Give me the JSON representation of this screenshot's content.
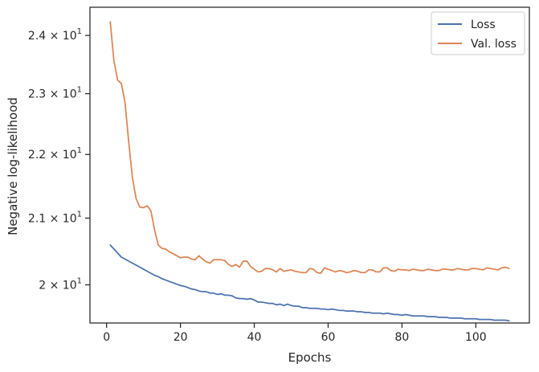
{
  "chart_data": {
    "type": "line",
    "xlabel": "Epochs",
    "ylabel": "Negative log-likelihood",
    "xlim": [
      -4.5,
      114.5
    ],
    "ylim": [
      19.45,
      24.5
    ],
    "yscale": "log",
    "x_ticks": [
      0,
      20,
      40,
      60,
      80,
      100
    ],
    "x_tick_labels": [
      "0",
      "20",
      "40",
      "60",
      "80",
      "100"
    ],
    "y_ticks": [
      20,
      21,
      22,
      23,
      24
    ],
    "y_tick_labels": [
      {
        "mantissa": "2",
        "exp": "1"
      },
      {
        "mantissa": "2.1",
        "exp": "1"
      },
      {
        "mantissa": "2.2",
        "exp": "1"
      },
      {
        "mantissa": "2.3",
        "exp": "1"
      },
      {
        "mantissa": "2.4",
        "exp": "1"
      }
    ],
    "y_tick_prefix_times": "×",
    "y_tick_base": "10",
    "grid": false,
    "legend_position": "top-right",
    "series": [
      {
        "name": "Loss",
        "color": "#4c72b0",
        "x": [
          1,
          2,
          3,
          4,
          5,
          6,
          7,
          8,
          9,
          10,
          11,
          12,
          13,
          14,
          15,
          16,
          17,
          18,
          19,
          20,
          21,
          22,
          23,
          24,
          25,
          26,
          27,
          28,
          29,
          30,
          31,
          32,
          33,
          34,
          35,
          36,
          37,
          38,
          39,
          40,
          41,
          42,
          43,
          44,
          45,
          46,
          47,
          48,
          49,
          50,
          51,
          52,
          53,
          54,
          55,
          56,
          57,
          58,
          59,
          60,
          61,
          62,
          63,
          64,
          65,
          66,
          67,
          68,
          69,
          70,
          71,
          72,
          73,
          74,
          75,
          76,
          77,
          78,
          79,
          80,
          81,
          82,
          83,
          84,
          85,
          86,
          87,
          88,
          89,
          90,
          91,
          92,
          93,
          94,
          95,
          96,
          97,
          98,
          99,
          100,
          101,
          102,
          103,
          104,
          105,
          106,
          107,
          108,
          109
        ],
        "values": [
          20.59,
          20.53,
          20.47,
          20.41,
          20.38,
          20.35,
          20.32,
          20.29,
          20.26,
          20.23,
          20.2,
          20.17,
          20.14,
          20.12,
          20.09,
          20.07,
          20.05,
          20.03,
          20.01,
          19.99,
          19.98,
          19.96,
          19.94,
          19.93,
          19.91,
          19.9,
          19.9,
          19.88,
          19.88,
          19.86,
          19.87,
          19.85,
          19.85,
          19.84,
          19.81,
          19.8,
          19.8,
          19.79,
          19.8,
          19.78,
          19.75,
          19.75,
          19.74,
          19.73,
          19.73,
          19.71,
          19.72,
          19.7,
          19.72,
          19.7,
          19.69,
          19.69,
          19.67,
          19.67,
          19.66,
          19.66,
          19.66,
          19.65,
          19.65,
          19.64,
          19.65,
          19.64,
          19.63,
          19.63,
          19.62,
          19.62,
          19.62,
          19.61,
          19.61,
          19.6,
          19.6,
          19.59,
          19.59,
          19.59,
          19.58,
          19.59,
          19.58,
          19.57,
          19.57,
          19.56,
          19.57,
          19.56,
          19.55,
          19.55,
          19.55,
          19.55,
          19.54,
          19.54,
          19.54,
          19.53,
          19.53,
          19.53,
          19.52,
          19.52,
          19.52,
          19.52,
          19.51,
          19.51,
          19.51,
          19.51,
          19.5,
          19.5,
          19.5,
          19.5,
          19.49,
          19.49,
          19.49,
          19.49,
          19.48
        ]
      },
      {
        "name": "Val. loss",
        "color": "#dd8452",
        "x": [
          1,
          2,
          3,
          4,
          5,
          6,
          7,
          8,
          9,
          10,
          11,
          12,
          13,
          14,
          15,
          16,
          17,
          18,
          19,
          20,
          21,
          22,
          23,
          24,
          25,
          26,
          27,
          28,
          29,
          30,
          31,
          32,
          33,
          34,
          35,
          36,
          37,
          38,
          39,
          40,
          41,
          42,
          43,
          44,
          45,
          46,
          47,
          48,
          49,
          50,
          51,
          52,
          53,
          54,
          55,
          56,
          57,
          58,
          59,
          60,
          61,
          62,
          63,
          64,
          65,
          66,
          67,
          68,
          69,
          70,
          71,
          72,
          73,
          74,
          75,
          76,
          77,
          78,
          79,
          80,
          81,
          82,
          83,
          84,
          85,
          86,
          87,
          88,
          89,
          90,
          91,
          92,
          93,
          94,
          95,
          96,
          97,
          98,
          99,
          100,
          101,
          102,
          103,
          104,
          105,
          106,
          107,
          108,
          109
        ],
        "values": [
          24.24,
          23.55,
          23.23,
          23.17,
          22.85,
          22.2,
          21.63,
          21.3,
          21.17,
          21.16,
          21.19,
          21.11,
          20.82,
          20.59,
          20.54,
          20.53,
          20.49,
          20.46,
          20.43,
          20.4,
          20.41,
          20.41,
          20.38,
          20.37,
          20.43,
          20.38,
          20.34,
          20.32,
          20.37,
          20.37,
          20.37,
          20.36,
          20.3,
          20.27,
          20.3,
          20.26,
          20.35,
          20.35,
          20.27,
          20.23,
          20.19,
          20.2,
          20.24,
          20.24,
          20.22,
          20.19,
          20.24,
          20.2,
          20.21,
          20.22,
          20.2,
          20.19,
          20.18,
          20.18,
          20.24,
          20.23,
          20.18,
          20.17,
          20.25,
          20.23,
          20.21,
          20.19,
          20.21,
          20.2,
          20.18,
          20.19,
          20.21,
          20.2,
          20.18,
          20.18,
          20.22,
          20.22,
          20.19,
          20.19,
          20.25,
          20.25,
          20.21,
          20.2,
          20.23,
          20.22,
          20.22,
          20.21,
          20.23,
          20.22,
          20.21,
          20.21,
          20.23,
          20.22,
          20.21,
          20.21,
          20.23,
          20.23,
          20.22,
          20.22,
          20.24,
          20.23,
          20.22,
          20.22,
          20.24,
          20.24,
          20.23,
          20.22,
          20.25,
          20.24,
          20.23,
          20.22,
          20.25,
          20.26,
          20.24
        ]
      }
    ]
  }
}
